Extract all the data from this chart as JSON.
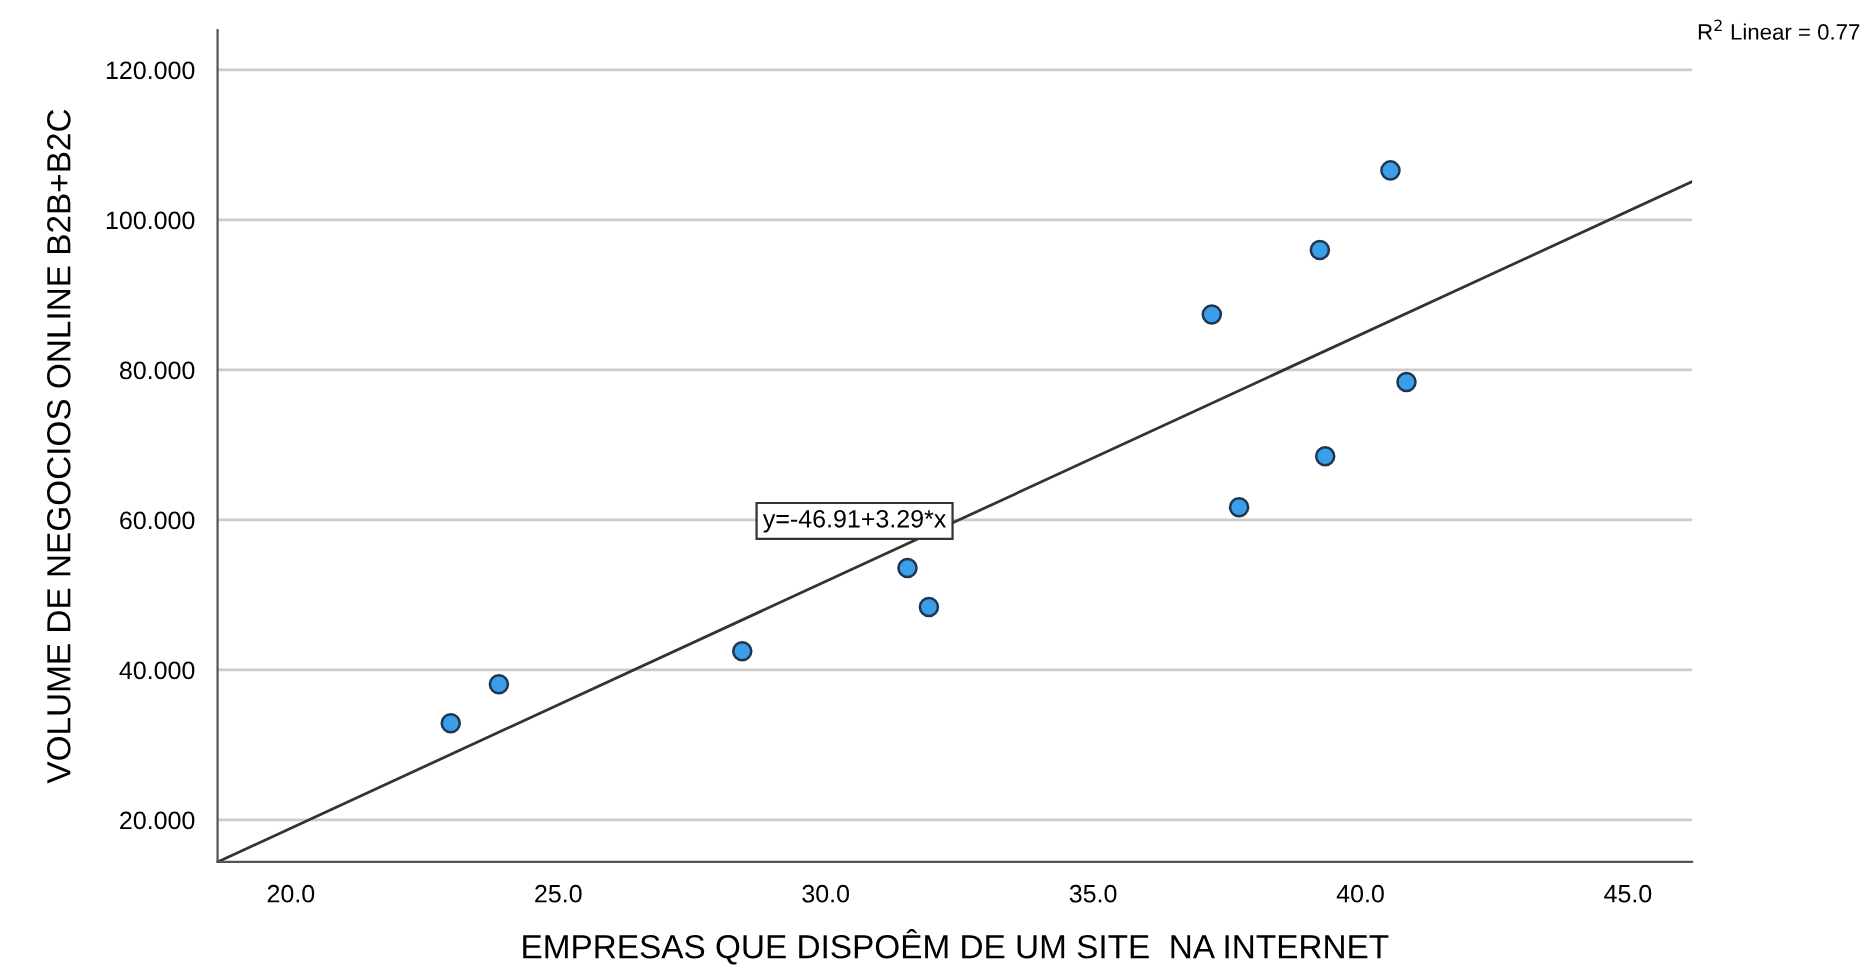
{
  "chart_data": {
    "type": "scatter",
    "xlabel": "EMPRESAS QUE DISPOÊM DE UM SITE  NA INTERNET",
    "ylabel": "VOLUME DE NEGOCIOS ONLINE B2B+B2C",
    "x": [
      22.99,
      23.89,
      28.44,
      31.53,
      31.93,
      37.22,
      37.73,
      39.24,
      39.34,
      40.56,
      40.86
    ],
    "series": [
      {
        "color": "#3a9ee8",
        "marker": "circle",
        "values": [
          32.9,
          38.1,
          42.5,
          53.6,
          48.4,
          87.4,
          61.7,
          96.0,
          68.5,
          106.6,
          78.4
        ]
      },
      {
        "type": "line",
        "color": "#333333",
        "x": [
          18.63,
          46.2
        ],
        "values": [
          14.4,
          105.1
        ]
      }
    ],
    "xlim": [
      18.63,
      46.2
    ],
    "ylim": [
      14.4,
      125.3
    ],
    "xticks": [
      {
        "value": 20,
        "label": "20.0"
      },
      {
        "value": 25,
        "label": "25.0"
      },
      {
        "value": 30,
        "label": "30.0"
      },
      {
        "value": 35,
        "label": "35.0"
      },
      {
        "value": 40,
        "label": "40.0"
      },
      {
        "value": 45,
        "label": "45.0"
      }
    ],
    "yticks": [
      {
        "value": 20,
        "label": "20.000"
      },
      {
        "value": 40,
        "label": "40.000"
      },
      {
        "value": 60,
        "label": "60.000"
      },
      {
        "value": 80,
        "label": "80.000"
      },
      {
        "value": 100,
        "label": "100.000"
      },
      {
        "value": 120,
        "label": "120.000"
      }
    ],
    "grid": "y",
    "line_style": "solid",
    "legend": false,
    "annotations": [
      "y=-46.91+3.29*x",
      "R$^{2}$ Linear = 0.77"
    ]
  }
}
